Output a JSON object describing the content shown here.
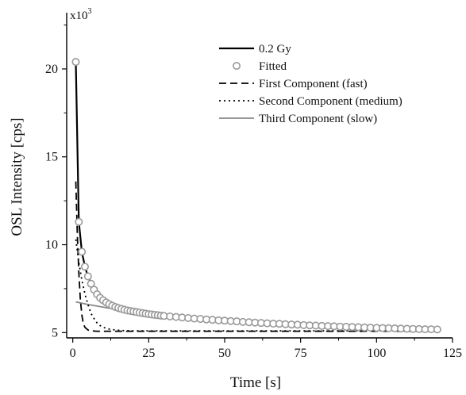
{
  "chart_data": {
    "type": "line",
    "xlabel": "Time [s]",
    "ylabel": "OSL Intensity [cps]",
    "y_multiplier": {
      "base": "x10",
      "exponent": "3"
    },
    "xlim": [
      -2,
      125
    ],
    "ylim": [
      4.7,
      23.2
    ],
    "x_ticks": [
      0,
      25,
      50,
      75,
      100,
      125
    ],
    "x_tick_labels": [
      "0",
      "25",
      "50",
      "75",
      "100",
      "125"
    ],
    "y_ticks": [
      5,
      10,
      15,
      20
    ],
    "y_tick_labels": [
      "5",
      "10",
      "15",
      "20"
    ],
    "legend_position": "top-right",
    "series": [
      {
        "name": "0.2 Gy",
        "style": "solid",
        "color": "#000000",
        "x": [
          1,
          2,
          3,
          4,
          5,
          6,
          7,
          8,
          9,
          10,
          11,
          12,
          13,
          14,
          15,
          17,
          20,
          25,
          30,
          40,
          50,
          60,
          70,
          80,
          90,
          100,
          110,
          120
        ],
        "y": [
          20.4,
          11.3,
          9.6,
          8.75,
          8.2,
          7.8,
          7.45,
          7.2,
          7.0,
          6.85,
          6.72,
          6.62,
          6.53,
          6.46,
          6.4,
          6.3,
          6.2,
          6.05,
          5.95,
          5.8,
          5.68,
          5.57,
          5.48,
          5.4,
          5.33,
          5.27,
          5.22,
          5.18
        ]
      },
      {
        "name": "Fitted",
        "style": "markers",
        "color": "#999999",
        "x": [
          1,
          2,
          3,
          4,
          5,
          6,
          7,
          8,
          9,
          10,
          11,
          12,
          13,
          14,
          15,
          16,
          17,
          18,
          19,
          20,
          21,
          22,
          23,
          24,
          25,
          26,
          27,
          28,
          29,
          30,
          32,
          34,
          36,
          38,
          40,
          42,
          44,
          46,
          48,
          50,
          52,
          54,
          56,
          58,
          60,
          62,
          64,
          66,
          68,
          70,
          72,
          74,
          76,
          78,
          80,
          82,
          84,
          86,
          88,
          90,
          92,
          94,
          96,
          98,
          100,
          102,
          104,
          106,
          108,
          110,
          112,
          114,
          116,
          118,
          120
        ],
        "y": [
          20.4,
          11.3,
          9.6,
          8.75,
          8.2,
          7.78,
          7.44,
          7.18,
          6.98,
          6.84,
          6.72,
          6.62,
          6.53,
          6.46,
          6.4,
          6.35,
          6.3,
          6.26,
          6.23,
          6.2,
          6.17,
          6.14,
          6.11,
          6.08,
          6.05,
          6.03,
          6.01,
          5.99,
          5.97,
          5.95,
          5.92,
          5.89,
          5.86,
          5.83,
          5.8,
          5.78,
          5.75,
          5.73,
          5.7,
          5.68,
          5.66,
          5.64,
          5.61,
          5.59,
          5.57,
          5.55,
          5.53,
          5.51,
          5.5,
          5.48,
          5.46,
          5.45,
          5.43,
          5.41,
          5.4,
          5.38,
          5.37,
          5.36,
          5.34,
          5.33,
          5.32,
          5.31,
          5.29,
          5.28,
          5.27,
          5.26,
          5.25,
          5.24,
          5.23,
          5.22,
          5.21,
          5.2,
          5.19,
          5.19,
          5.18
        ]
      },
      {
        "name": "First Component (fast)",
        "style": "dashed",
        "color": "#000000",
        "x": [
          1,
          1.5,
          2,
          2.5,
          3,
          3.5,
          4,
          5,
          6,
          8,
          10,
          20,
          40,
          60,
          80,
          100,
          120
        ],
        "y": [
          13.6,
          10.6,
          8.4,
          6.9,
          6.0,
          5.5,
          5.3,
          5.15,
          5.1,
          5.08,
          5.08,
          5.08,
          5.08,
          5.08,
          5.08,
          5.08,
          5.08
        ]
      },
      {
        "name": "Second Component (medium)",
        "style": "dotted",
        "color": "#000000",
        "x": [
          1,
          2,
          3,
          4,
          5,
          6,
          7,
          8,
          9,
          10,
          12,
          14,
          16,
          20,
          30,
          50,
          80,
          120
        ],
        "y": [
          10.3,
          9.0,
          8.0,
          7.2,
          6.6,
          6.1,
          5.8,
          5.55,
          5.4,
          5.3,
          5.2,
          5.15,
          5.12,
          5.1,
          5.1,
          5.1,
          5.1,
          5.1
        ]
      },
      {
        "name": "Third Component (slow)",
        "style": "solid",
        "color": "#888888",
        "x": [
          1,
          5,
          10,
          15,
          20,
          25,
          30,
          40,
          50,
          60,
          70,
          80,
          90,
          100,
          110,
          120
        ],
        "y": [
          6.75,
          6.6,
          6.45,
          6.3,
          6.15,
          6.02,
          5.92,
          5.76,
          5.63,
          5.53,
          5.45,
          5.38,
          5.32,
          5.27,
          5.23,
          5.19
        ]
      }
    ]
  }
}
